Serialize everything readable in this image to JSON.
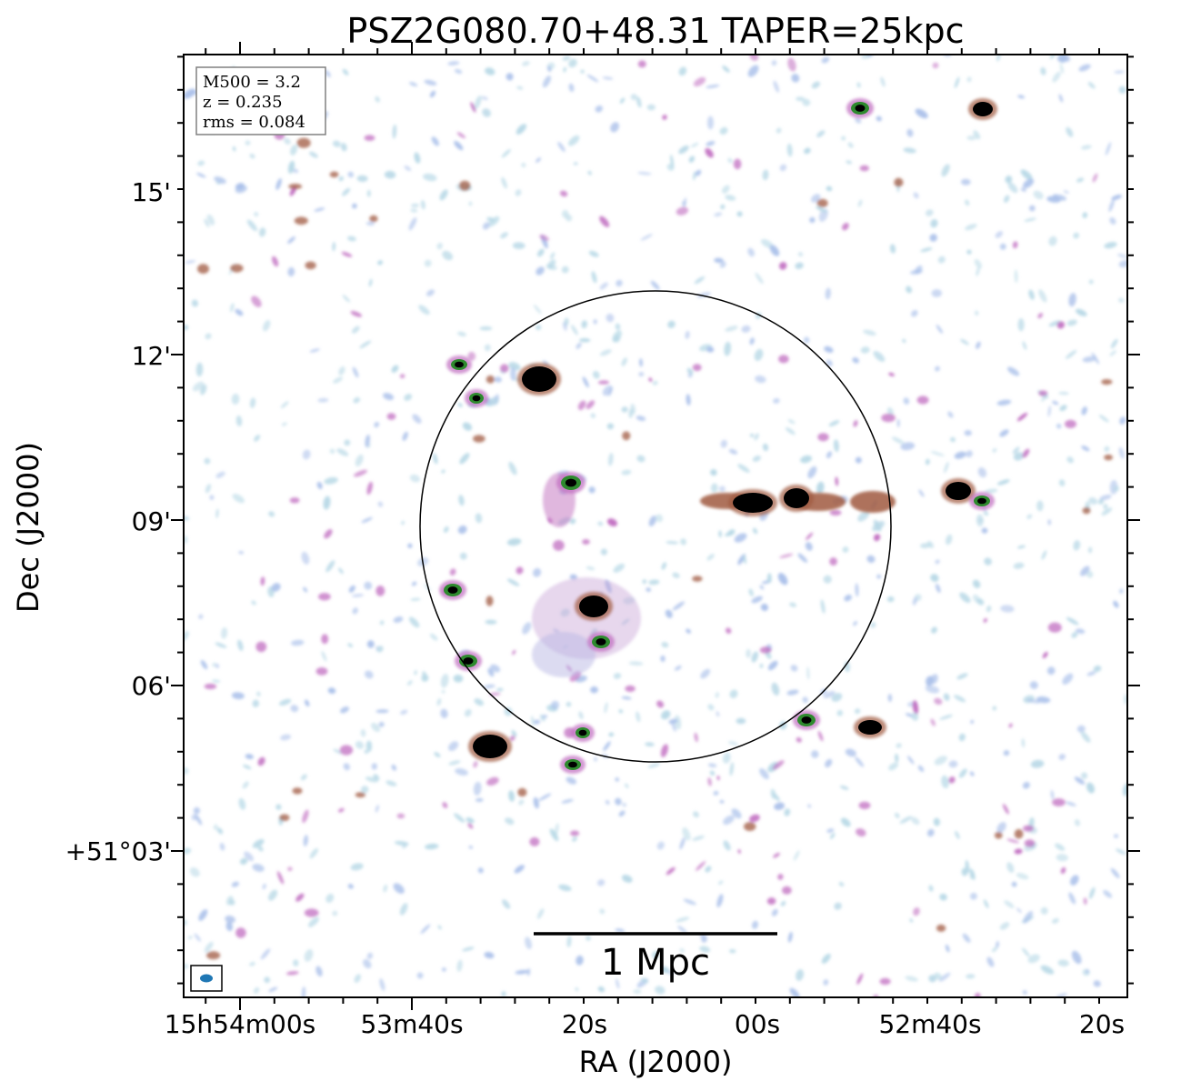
{
  "chart_data": {
    "type": "image",
    "title": "PSZ2G080.70+48.31 TAPER=25kpc",
    "xlabel": "RA (J2000)",
    "ylabel": "Dec (J2000)",
    "x_ticks": [
      "15h54m00s",
      "53m40s",
      "20s",
      "00s",
      "52m40s",
      "20s"
    ],
    "y_ticks": [
      "+51°03'",
      "06'",
      "09'",
      "12'",
      "15'"
    ],
    "info_box": {
      "placement": "top-left",
      "lines": [
        "M500 = 3.2",
        "z = 0.235",
        "rms = 0.084"
      ]
    },
    "scale_bar": {
      "label": "1 Mpc"
    },
    "colormap": {
      "low": "#b7d8e6",
      "low2": "#aac0ea",
      "mid": "#c06cc0",
      "high": "#a05a40",
      "peak": "#000000",
      "ring": "#2e8a2e"
    },
    "bright_sources": [
      {
        "id": "src-1",
        "ra": "15h53m25s",
        "dec": "+51°11'35\""
      },
      {
        "id": "src-2",
        "ra": "15h53m19s",
        "dec": "+51°07'25\""
      },
      {
        "id": "src-3",
        "ra": "15h53m31s",
        "dec": "+51°04'55\""
      },
      {
        "id": "src-4",
        "ra": "15h53m00s",
        "dec": "+51°09'20\""
      },
      {
        "id": "src-5",
        "ra": "15h52m56s",
        "dec": "+51°09'25\""
      },
      {
        "id": "src-6",
        "ra": "15h52m38s",
        "dec": "+51°09'35\""
      },
      {
        "id": "src-7",
        "ra": "15h52m47s",
        "dec": "+51°05'15\""
      },
      {
        "id": "src-8",
        "ra": "15h52m34s",
        "dec": "+51°16'30\""
      }
    ]
  }
}
